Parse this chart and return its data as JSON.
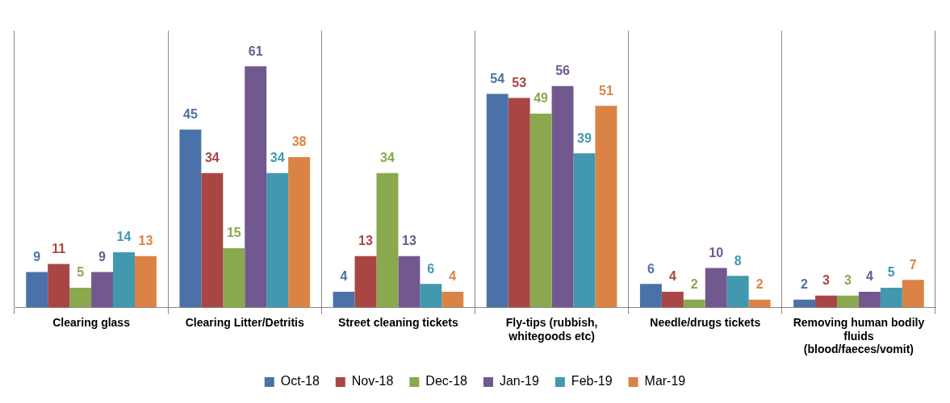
{
  "chart_data": {
    "type": "bar",
    "categories": [
      "Clearing glass",
      "Clearing Litter/Detritis",
      "Street cleaning tickets",
      "Fly-tips (rubbish, whitegoods etc)",
      "Needle/drugs tickets",
      "Removing human bodily fluids (blood/faeces/vomit)"
    ],
    "series": [
      {
        "name": "Oct-18",
        "color": "#4a72a8",
        "values": [
          9,
          45,
          4,
          54,
          6,
          2
        ]
      },
      {
        "name": "Nov-18",
        "color": "#a94543",
        "values": [
          11,
          34,
          13,
          53,
          4,
          3
        ]
      },
      {
        "name": "Dec-18",
        "color": "#8aa84e",
        "values": [
          5,
          15,
          34,
          49,
          2,
          3
        ]
      },
      {
        "name": "Jan-19",
        "color": "#71588f",
        "values": [
          9,
          61,
          13,
          56,
          10,
          4
        ]
      },
      {
        "name": "Feb-19",
        "color": "#4198af",
        "values": [
          14,
          34,
          6,
          39,
          8,
          5
        ]
      },
      {
        "name": "Mar-19",
        "color": "#db8344",
        "values": [
          13,
          38,
          4,
          51,
          2,
          7
        ]
      }
    ],
    "data_labels": true,
    "grid": "x",
    "legend": "bottom"
  }
}
